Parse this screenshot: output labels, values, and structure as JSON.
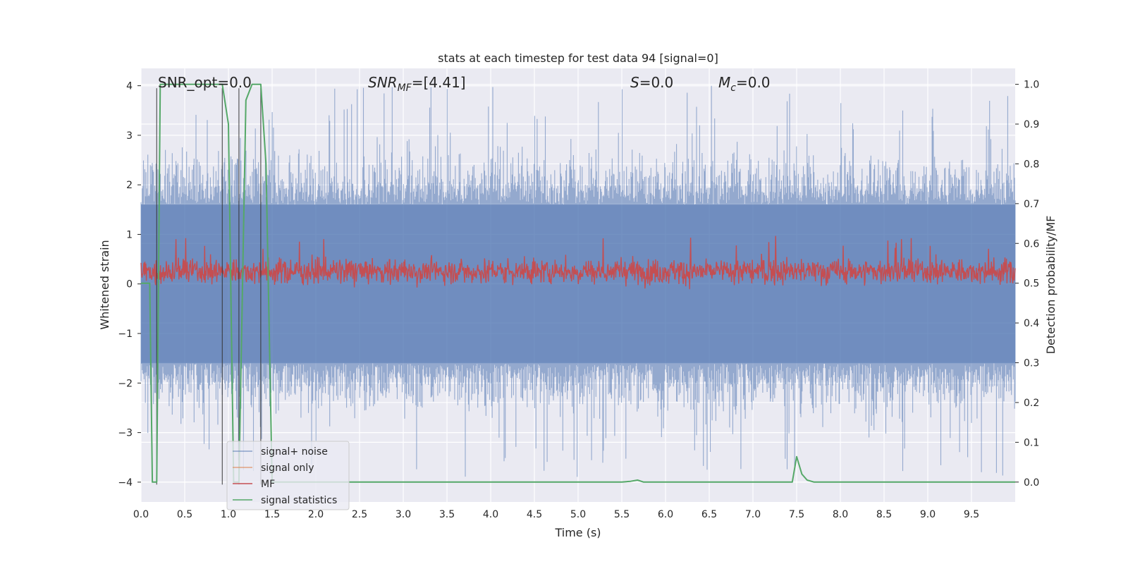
{
  "chart_data": {
    "type": "line",
    "title": "stats at each timestep for test data 94 [signal=0]",
    "xlabel": "Time (s)",
    "ylabel_left": "Whitened strain",
    "ylabel_right": "Detection probability/MF",
    "xlim": [
      0.0,
      10.0
    ],
    "ylim_left": [
      -4.4,
      4.35
    ],
    "ylim_right": [
      -0.05,
      1.04
    ],
    "xticks": [
      "0.0",
      "0.5",
      "1.0",
      "1.5",
      "2.0",
      "2.5",
      "3.0",
      "3.5",
      "4.0",
      "4.5",
      "5.0",
      "5.5",
      "6.0",
      "6.5",
      "7.0",
      "7.5",
      "8.0",
      "8.5",
      "9.0",
      "9.5"
    ],
    "yticks_left": [
      "−4",
      "−3",
      "−2",
      "−1",
      "0",
      "1",
      "2",
      "3",
      "4"
    ],
    "yticks_right": [
      "0.0",
      "0.1",
      "0.2",
      "0.3",
      "0.4",
      "0.5",
      "0.6",
      "0.7",
      "0.8",
      "0.9",
      "1.0"
    ],
    "grid": true,
    "legend_placement": "lower-left",
    "annotations": {
      "snr_opt": "SNR_opt=0.0",
      "snr_mf_sym": "SNR",
      "snr_mf_sub": "MF",
      "snr_mf_val": "=[4.41]",
      "s_sym": "S",
      "s_val": "=0.0",
      "mc_sym": "M",
      "mc_sub": "c",
      "mc_val": "=0.0"
    },
    "series": [
      {
        "name": "signal+ noise",
        "axis": "left",
        "color": "#4c72b0",
        "alpha": 0.5,
        "envelope": {
          "typical": 1.6,
          "peak": 4.0
        },
        "note_values": "noise"
      },
      {
        "name": "signal only",
        "axis": "left",
        "color": "#dd8452",
        "values": []
      },
      {
        "name": "MF",
        "axis": "right",
        "color": "#c44e52",
        "envelope": {
          "center": 0.53,
          "spread": 0.05,
          "peak": 0.62
        }
      },
      {
        "name": "signal statistics",
        "axis": "right",
        "color": "#55a868",
        "x": [
          0.0,
          0.05,
          0.1,
          0.13,
          0.18,
          0.22,
          0.26,
          0.5,
          0.75,
          0.93,
          1.0,
          1.06,
          1.12,
          1.2,
          1.27,
          1.37,
          1.43,
          1.5,
          1.55,
          1.6,
          2.0,
          3.0,
          4.0,
          5.0,
          5.5,
          5.6,
          5.68,
          5.75,
          6.0,
          7.0,
          7.4,
          7.45,
          7.5,
          7.56,
          7.62,
          7.7,
          8.0,
          9.0,
          10.0
        ],
        "values": [
          0.5,
          0.5,
          0.5,
          0.0,
          0.0,
          1.0,
          1.0,
          1.0,
          1.0,
          1.0,
          0.9,
          0.0,
          0.0,
          0.96,
          1.0,
          1.0,
          0.8,
          0.0,
          0.0,
          0.0,
          0.0,
          0.0,
          0.0,
          0.0,
          0.0,
          0.002,
          0.005,
          0.0,
          0.0,
          0.0,
          0.0,
          0.0,
          0.064,
          0.02,
          0.005,
          0.0,
          0.0,
          0.0,
          0.0
        ]
      }
    ],
    "vlines_x": [
      0.18,
      0.93,
      1.12,
      1.37
    ]
  }
}
